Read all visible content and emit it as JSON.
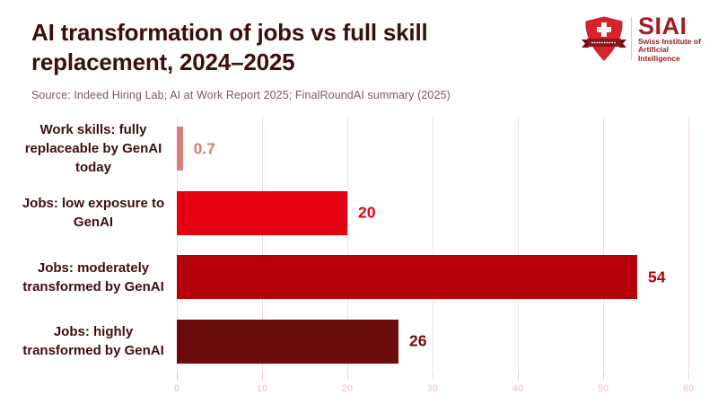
{
  "header": {
    "title": "AI transformation of jobs vs full skill replacement, 2024–2025",
    "title_lines": [
      "AI transformation of jobs vs full skill",
      "replacement, 2024–2025"
    ],
    "title_color": "#3E0D0D",
    "source": "Source: Indeed Hiring Lab; AI at Work Report 2025; FinalRoundAI summary (2025)"
  },
  "logo": {
    "acronym": "SIAI",
    "subtitle_line1": "Swiss Institute of",
    "subtitle_line2": "Artificial Intelligence",
    "shield_red": "#D8232A",
    "ribbon_red": "#8B151A",
    "text_red": "#A01D21"
  },
  "chart_data": {
    "type": "bar",
    "orientation": "horizontal",
    "title": "AI transformation of jobs vs full skill replacement, 2024–2025",
    "xlabel": "",
    "ylabel": "",
    "categories": [
      "Work skills: fully replaceable by GenAI today",
      "Jobs: low exposure to GenAI",
      "Jobs: moderately transformed by GenAI",
      "Jobs: highly transformed by GenAI"
    ],
    "values": [
      0.7,
      20,
      54,
      26
    ],
    "value_labels": [
      "0.7",
      "20",
      "54",
      "26"
    ],
    "bar_colors": [
      "#D97C7C",
      "#E3000F",
      "#B40009",
      "#6B0B0B"
    ],
    "xlim": [
      0,
      60
    ],
    "x_ticks": [
      0,
      10,
      20,
      30,
      40,
      50,
      60
    ],
    "grid": true,
    "grid_color": "#F6DEDE",
    "tick_label_color": "#F5D2D2",
    "legend": "none"
  }
}
